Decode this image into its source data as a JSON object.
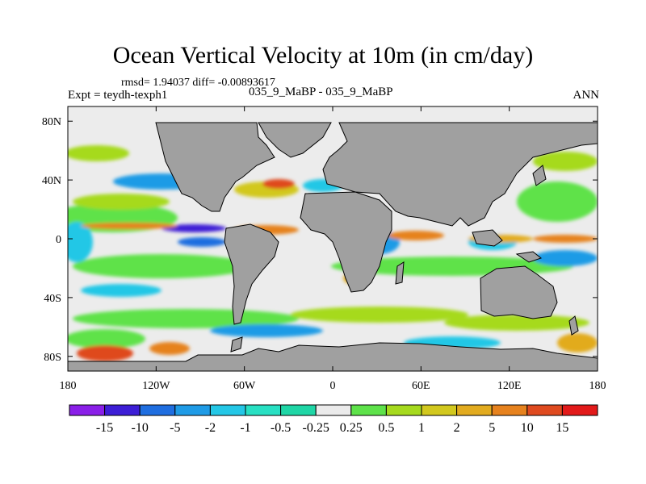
{
  "title": "Ocean Vertical Velocity at 10m (in cm/day)",
  "stats": "rmsd= 1.94037 diff= -0.00893617",
  "experiment": "Expt = teydh-texph1",
  "case": "035_9_MaBP - 035_9_MaBP",
  "season": "ANN",
  "colors": {
    "land": "#a0a0a0",
    "ocean_base": "#ececec",
    "levels": [
      "#8a1fe8",
      "#3d1ed6",
      "#1f6ee0",
      "#1f9be6",
      "#24c7e6",
      "#28e0c3",
      "#ebebeb",
      "#5ee24a",
      "#a6da1e",
      "#d2c81e",
      "#e2ab1f",
      "#e6821e",
      "#df4a1f",
      "#e21a1a"
    ]
  },
  "chart_data": {
    "type": "filled-contour-map",
    "variable": "Ocean Vertical Velocity at 10m",
    "units": "cm/day",
    "x_ticks": [
      "180",
      "120W",
      "60W",
      "0",
      "60E",
      "120E",
      "180"
    ],
    "y_ticks": [
      "80N",
      "40N",
      "0",
      "40S",
      "80S"
    ],
    "lon_range": [
      -180,
      180
    ],
    "lat_range": [
      -90,
      90
    ],
    "colorbar_labels": [
      "-15",
      "-10",
      "-5",
      "-2",
      "-1",
      "-0.5",
      "-0.25",
      "0.25",
      "0.5",
      "1",
      "2",
      "5",
      "10",
      "15"
    ]
  }
}
